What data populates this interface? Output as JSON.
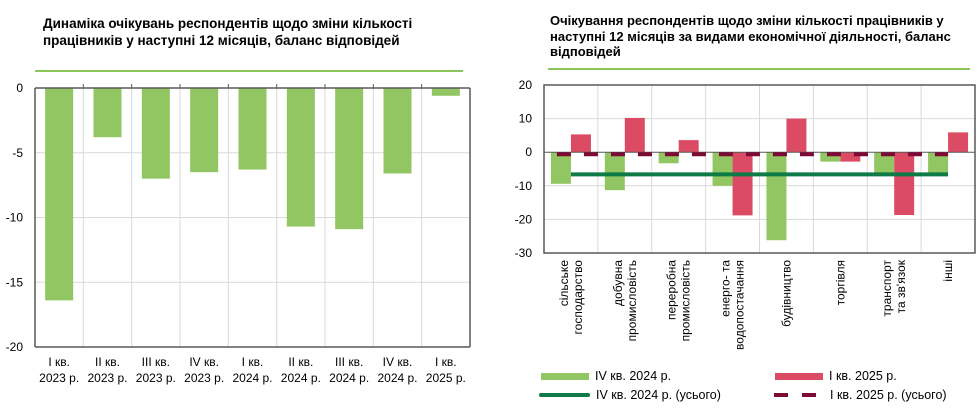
{
  "left_panel": {
    "title": "Динаміка очікувань респондентів щодо зміни кількості працівників у наступні 12 місяців, баланс відповідей"
  },
  "right_panel": {
    "title": "Очікування респондентів щодо зміни кількості працівників у наступні 12 місяців за видами економічної діяльності, баланс відповідей"
  },
  "colors": {
    "green": "#92c662",
    "red": "#dc4b64",
    "dark_green": "#0e7a45",
    "dark_red": "#7c0a35",
    "grid": "#d9d9d9",
    "axis": "#595959",
    "title_rule": "#8cc65a"
  },
  "chart_data": [
    {
      "type": "bar",
      "title": "Динаміка очікувань респондентів щодо зміни кількості працівників у наступні 12 місяців, баланс відповідей",
      "categories": [
        [
          "I кв.",
          "2023 р."
        ],
        [
          "II кв.",
          "2023 р."
        ],
        [
          "III кв.",
          "2023 р."
        ],
        [
          "IV кв.",
          "2023 р."
        ],
        [
          "I кв.",
          "2024 р."
        ],
        [
          "II кв.",
          "2024 р."
        ],
        [
          "III кв.",
          "2024 р."
        ],
        [
          "IV кв.",
          "2024 р."
        ],
        [
          "I кв.",
          "2025 р."
        ]
      ],
      "values": [
        -16.4,
        -3.8,
        -7.0,
        -6.5,
        -6.3,
        -10.7,
        -10.9,
        -6.6,
        -0.6
      ],
      "xlabel": "",
      "ylabel": "",
      "ylim": [
        -20,
        0
      ],
      "yticks": [
        0,
        -5,
        -10,
        -15,
        -20
      ],
      "grid": true,
      "legend": "none"
    },
    {
      "type": "bar",
      "title": "Очікування респондентів щодо зміни кількості працівників у наступні 12 місяців за видами економічної діяльності, баланс відповідей",
      "categories": [
        [
          "сільське",
          "господарство"
        ],
        [
          "добувна",
          "промисловість"
        ],
        [
          "переробна",
          "промисловість"
        ],
        [
          "енерго- та",
          "водопостачання"
        ],
        [
          "будівництво"
        ],
        [
          "торгівля"
        ],
        [
          "транспорт",
          "та зв'язок"
        ],
        [
          "інші"
        ]
      ],
      "series": [
        {
          "name": "IV кв. 2024 р.",
          "kind": "bar",
          "values": [
            -9.4,
            -11.3,
            -3.3,
            -10.0,
            -26.2,
            -2.8,
            -6.2,
            -6.2
          ]
        },
        {
          "name": "I кв. 2025 р.",
          "kind": "bar",
          "values": [
            5.3,
            10.2,
            3.6,
            -18.8,
            10.0,
            -2.8,
            -18.7,
            5.9
          ]
        },
        {
          "name": "IV кв. 2024 р. (усього)",
          "kind": "line",
          "value": -6.6
        },
        {
          "name": "I кв. 2025 р. (усього)",
          "kind": "dashed-line",
          "value": -0.6
        }
      ],
      "xlabel": "",
      "ylabel": "",
      "ylim": [
        -30,
        20
      ],
      "yticks": [
        20,
        10,
        0,
        -10,
        -20,
        -30
      ],
      "grid": true,
      "legend": "bottom"
    }
  ]
}
